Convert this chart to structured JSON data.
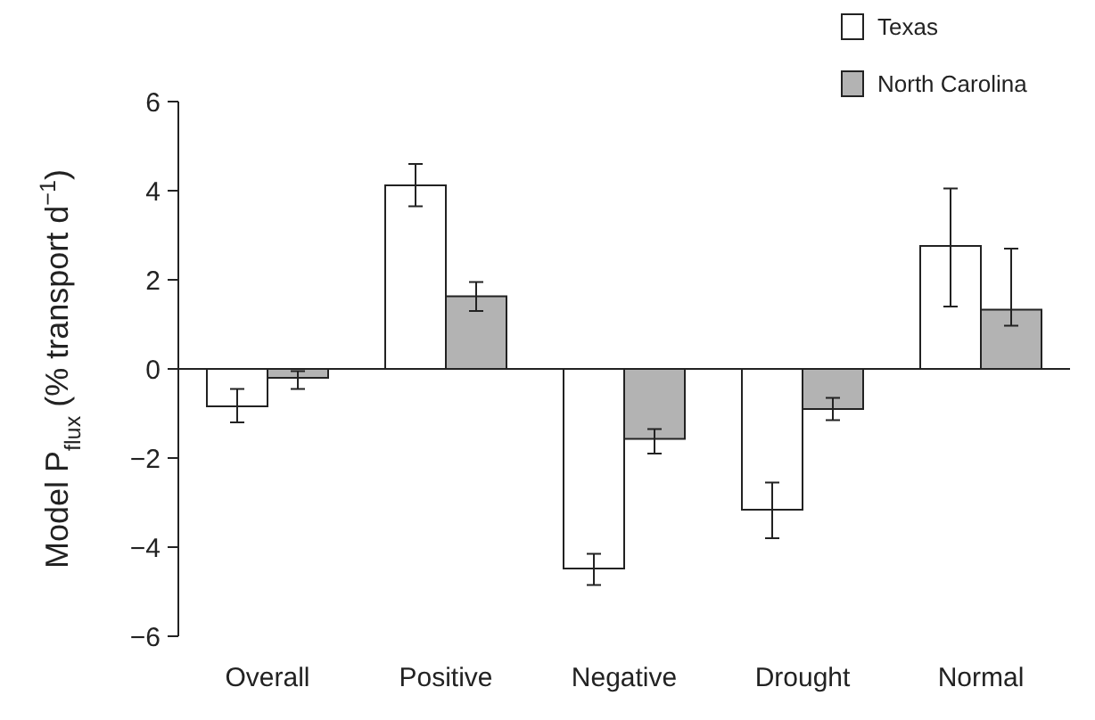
{
  "chart_data": {
    "type": "bar",
    "ylabel": "Model P$_{flux}$ (% transport d$^{−1}$)",
    "categories": [
      "Overall",
      "Positive",
      "Negative",
      "Drought",
      "Normal"
    ],
    "series": [
      {
        "name": "Texas",
        "color": "#ffffff",
        "values": [
          -0.84,
          4.12,
          -4.48,
          -3.16,
          2.76
        ],
        "errors": [
          [
            -1.2,
            -0.45
          ],
          [
            3.65,
            4.6
          ],
          [
            -4.85,
            -4.15
          ],
          [
            -3.8,
            -2.55
          ],
          [
            1.4,
            4.05
          ]
        ]
      },
      {
        "name": "North Carolina",
        "color": "#b3b3b3",
        "values": [
          -0.2,
          1.63,
          -1.57,
          -0.9,
          1.33
        ],
        "errors": [
          [
            -0.45,
            -0.05
          ],
          [
            1.3,
            1.95
          ],
          [
            -1.9,
            -1.35
          ],
          [
            -1.15,
            -0.65
          ],
          [
            0.97,
            2.7
          ]
        ]
      }
    ],
    "ylim": [
      -6,
      6
    ],
    "yticks": [
      {
        "value": -6,
        "label": "−6"
      },
      {
        "value": -4,
        "label": "−4"
      },
      {
        "value": -2,
        "label": "−2"
      },
      0,
      2,
      4,
      6
    ],
    "legend": "top right"
  }
}
